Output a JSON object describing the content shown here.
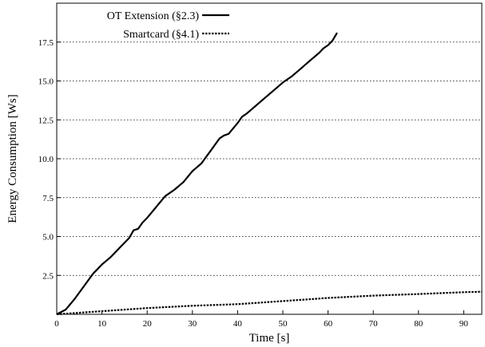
{
  "chart_data": {
    "type": "line",
    "xlabel": "Time [s]",
    "ylabel": "Energy Consumption [Ws]",
    "xlim": [
      0,
      94
    ],
    "ylim": [
      0,
      20
    ],
    "xticks": [
      0,
      10,
      20,
      30,
      40,
      50,
      60,
      70,
      80,
      90
    ],
    "yticks": [
      2.5,
      5.0,
      7.5,
      10.0,
      12.5,
      15.0,
      17.5
    ],
    "ytick_labels": [
      "2.5",
      "5.0",
      "7.5",
      "10.0",
      "12.5",
      "15.0",
      "17.5"
    ],
    "grid": "horizontal-dotted",
    "legend_position": "top-left",
    "series": [
      {
        "name": "OT Extension (§2.3)",
        "style": "solid",
        "color": "#000000",
        "x": [
          0,
          2,
          4,
          6,
          8,
          10,
          12,
          14,
          16,
          17,
          18,
          19,
          20,
          22,
          24,
          26,
          28,
          30,
          32,
          34,
          36,
          37,
          38,
          40,
          41,
          42,
          44,
          46,
          48,
          50,
          52,
          54,
          56,
          58,
          59,
          60,
          61,
          62
        ],
        "y": [
          0,
          0.3,
          1.0,
          1.8,
          2.6,
          3.2,
          3.7,
          4.3,
          4.9,
          5.4,
          5.5,
          5.9,
          6.2,
          6.9,
          7.6,
          8.0,
          8.5,
          9.2,
          9.7,
          10.5,
          11.3,
          11.5,
          11.6,
          12.3,
          12.7,
          12.9,
          13.4,
          13.9,
          14.4,
          14.9,
          15.3,
          15.8,
          16.3,
          16.8,
          17.1,
          17.3,
          17.6,
          18.1
        ]
      },
      {
        "name": "Smartcard (§4.1)",
        "style": "dotted",
        "color": "#000000",
        "x": [
          0,
          10,
          20,
          30,
          40,
          45,
          50,
          55,
          60,
          70,
          80,
          90,
          94
        ],
        "y": [
          0,
          0.2,
          0.4,
          0.55,
          0.65,
          0.75,
          0.85,
          0.95,
          1.05,
          1.2,
          1.3,
          1.42,
          1.45
        ]
      }
    ]
  }
}
